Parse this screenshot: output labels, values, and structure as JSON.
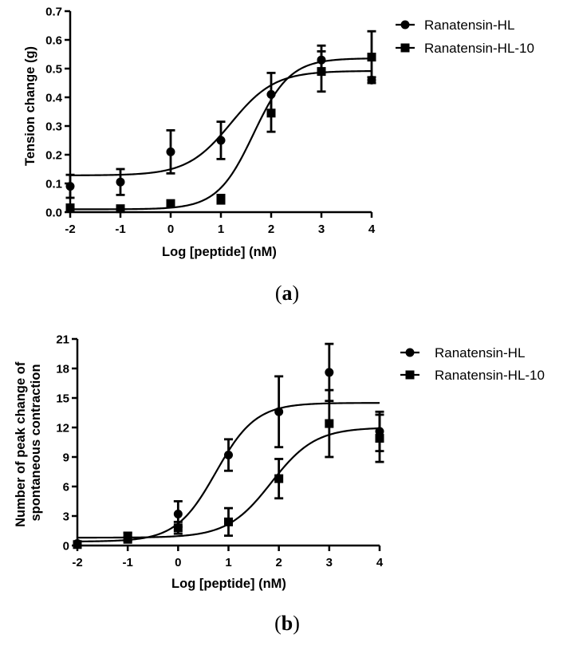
{
  "chart_data": [
    {
      "type": "scatter",
      "panel": "a",
      "caption_open": "(",
      "caption_letter": "a",
      "caption_close": ")",
      "xlabel": "Log [peptide] (nM)",
      "ylabel": "Tension change (g)",
      "xlim": [
        -2,
        4
      ],
      "ylim": [
        0,
        0.7
      ],
      "xticks": [
        -2,
        -1,
        0,
        1,
        2,
        3,
        4
      ],
      "xtick_labels": [
        "-2",
        "-1",
        "0",
        "1",
        "2",
        "3",
        "4"
      ],
      "yticks": [
        0,
        0.1,
        0.2,
        0.3,
        0.4,
        0.5,
        0.6,
        0.7
      ],
      "ytick_labels": [
        "0.0",
        "0.1",
        "0.2",
        "0.3",
        "0.4",
        "0.5",
        "0.6",
        "0.7"
      ],
      "legend_position": "top-right",
      "series": [
        {
          "name": "Ranatensin-HL",
          "marker": "circle",
          "x": [
            -2,
            -1,
            0,
            1,
            2,
            3,
            4
          ],
          "y": [
            0.09,
            0.105,
            0.21,
            0.25,
            0.41,
            0.53,
            0.46
          ],
          "error": [
            0.04,
            0.045,
            0.075,
            0.065,
            0.075,
            0.05,
            0.01
          ],
          "fit": {
            "bottom": 0.128,
            "top": 0.492,
            "logEC50": 1.2,
            "hill": 1.0
          }
        },
        {
          "name": "Ranatensin-HL-10",
          "marker": "square",
          "x": [
            -2,
            -1,
            0,
            1,
            2,
            3,
            4
          ],
          "y": [
            0.015,
            0.012,
            0.03,
            0.045,
            0.345,
            0.49,
            0.54
          ],
          "error": [
            0.005,
            0.005,
            0.005,
            0.015,
            0.065,
            0.07,
            0.09
          ],
          "fit": {
            "bottom": 0.01,
            "top": 0.536,
            "logEC50": 1.65,
            "hill": 1.2
          }
        }
      ]
    },
    {
      "type": "scatter",
      "panel": "b",
      "caption_open": "(",
      "caption_letter": "b",
      "caption_close": ")",
      "xlabel": "Log [peptide] (nM)",
      "ylabel_line1": "Number of peak change of",
      "ylabel_line2": "spontaneous contraction",
      "xlim": [
        -2,
        4
      ],
      "ylim": [
        0,
        21
      ],
      "xticks": [
        -2,
        -1,
        0,
        1,
        2,
        3,
        4
      ],
      "xtick_labels": [
        "-2",
        "-1",
        "0",
        "1",
        "2",
        "3",
        "4"
      ],
      "yticks": [
        0,
        3,
        6,
        9,
        12,
        15,
        18,
        21
      ],
      "ytick_labels": [
        "0",
        "3",
        "6",
        "9",
        "12",
        "15",
        "18",
        "21"
      ],
      "legend_position": "top-right",
      "series": [
        {
          "name": "Ranatensin-HL",
          "marker": "circle",
          "x": [
            -2,
            -1,
            0,
            1,
            2,
            3,
            4
          ],
          "y": [
            0.2,
            0.9,
            3.2,
            9.2,
            13.6,
            17.6,
            11.6
          ],
          "error": [
            0.1,
            0.4,
            1.3,
            1.6,
            3.6,
            2.9,
            2.0
          ],
          "fit": {
            "bottom": 0.4,
            "top": 14.5,
            "logEC50": 0.75,
            "hill": 1.1
          }
        },
        {
          "name": "Ranatensin-HL-10",
          "marker": "square",
          "x": [
            -2,
            -1,
            0,
            1,
            2,
            3,
            4
          ],
          "y": [
            0.1,
            0.8,
            1.8,
            2.4,
            6.8,
            12.4,
            10.9
          ],
          "error": [
            0.1,
            0.5,
            0.6,
            1.4,
            2.0,
            3.4,
            2.4
          ],
          "fit": {
            "bottom": 0.8,
            "top": 12.0,
            "logEC50": 1.85,
            "hill": 1.0
          }
        }
      ]
    }
  ]
}
